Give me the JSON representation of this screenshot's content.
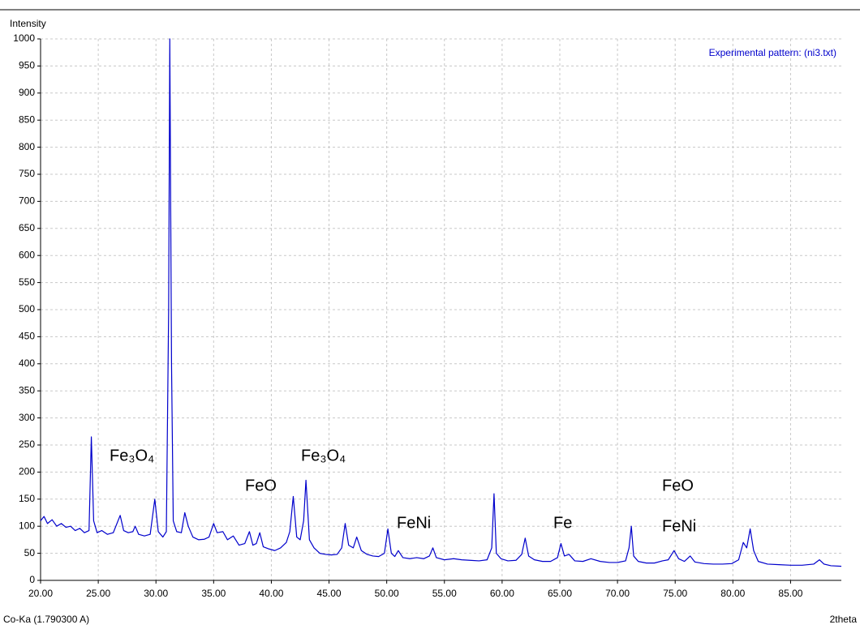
{
  "chart_data": {
    "type": "line",
    "y_label": "Intensity",
    "x_label": "2theta",
    "subtitle": "Co-Ka (1.790300 A)",
    "xlim": [
      20,
      89.4
    ],
    "ylim": [
      0,
      1000
    ],
    "xticks": [
      {
        "value": 20,
        "label": "20.00"
      },
      {
        "value": 25,
        "label": "25.00"
      },
      {
        "value": 30,
        "label": "30.00"
      },
      {
        "value": 35,
        "label": "35.00"
      },
      {
        "value": 40,
        "label": "40.00"
      },
      {
        "value": 45,
        "label": "45.00"
      },
      {
        "value": 50,
        "label": "50.00"
      },
      {
        "value": 55,
        "label": "55.00"
      },
      {
        "value": 60,
        "label": "60.00"
      },
      {
        "value": 65,
        "label": "65.00"
      },
      {
        "value": 70,
        "label": "70.00"
      },
      {
        "value": 75,
        "label": "75.00"
      },
      {
        "value": 80,
        "label": "80.00"
      },
      {
        "value": 85,
        "label": "85.00"
      }
    ],
    "yticks": [
      0,
      50,
      100,
      150,
      200,
      250,
      300,
      350,
      400,
      450,
      500,
      550,
      600,
      650,
      700,
      750,
      800,
      850,
      900,
      950,
      1000
    ],
    "grid": true,
    "legend": "top-right",
    "annotations": [
      "Fe₃O₄",
      "FeO",
      "Fe₃O₄",
      "FeNi",
      "Fe",
      "FeO",
      "FeNi"
    ],
    "x": [
      20.0,
      20.3,
      20.6,
      21.0,
      21.4,
      21.8,
      22.2,
      22.6,
      23.0,
      23.4,
      23.8,
      24.2,
      24.4,
      24.6,
      24.9,
      25.3,
      25.8,
      26.3,
      26.9,
      27.2,
      27.6,
      28.0,
      28.2,
      28.5,
      29.0,
      29.5,
      29.9,
      30.2,
      30.6,
      30.9,
      31.1,
      31.2,
      31.35,
      31.5,
      31.8,
      32.2,
      32.5,
      32.8,
      33.2,
      33.7,
      34.2,
      34.6,
      35.0,
      35.3,
      35.8,
      36.2,
      36.7,
      37.2,
      37.7,
      38.1,
      38.4,
      38.7,
      39.0,
      39.3,
      39.8,
      40.3,
      40.8,
      41.3,
      41.6,
      41.9,
      42.2,
      42.5,
      42.8,
      43.0,
      43.3,
      43.7,
      44.2,
      44.7,
      45.2,
      45.7,
      46.1,
      46.4,
      46.7,
      47.1,
      47.4,
      47.8,
      48.3,
      48.8,
      49.3,
      49.8,
      50.1,
      50.4,
      50.7,
      51.0,
      51.4,
      52.0,
      52.6,
      53.2,
      53.7,
      54.0,
      54.3,
      55.0,
      55.8,
      56.5,
      57.2,
      58.0,
      58.7,
      59.1,
      59.3,
      59.5,
      59.9,
      60.5,
      61.2,
      61.7,
      62.0,
      62.3,
      62.8,
      63.5,
      64.2,
      64.8,
      65.1,
      65.4,
      65.8,
      66.3,
      67.0,
      67.7,
      68.5,
      69.3,
      70.0,
      70.7,
      71.0,
      71.2,
      71.4,
      71.8,
      72.5,
      73.2,
      73.9,
      74.4,
      74.9,
      75.3,
      75.8,
      76.3,
      76.7,
      77.5,
      78.3,
      79.1,
      79.9,
      80.5,
      80.9,
      81.2,
      81.5,
      81.8,
      82.2,
      83.0,
      84.0,
      85.0,
      86.0,
      87.0,
      87.5,
      87.9,
      88.5,
      89.4
    ],
    "series": [
      {
        "name": "Experimental pattern: (ni3.txt)",
        "color": "#0000cc",
        "values": [
          110,
          118,
          105,
          112,
          100,
          105,
          98,
          100,
          92,
          96,
          88,
          92,
          265,
          110,
          88,
          92,
          85,
          88,
          120,
          92,
          88,
          90,
          100,
          85,
          82,
          85,
          150,
          90,
          80,
          90,
          500,
          1000,
          400,
          110,
          90,
          88,
          125,
          100,
          80,
          75,
          76,
          80,
          105,
          88,
          90,
          75,
          82,
          65,
          68,
          90,
          65,
          68,
          88,
          62,
          58,
          55,
          60,
          70,
          90,
          155,
          80,
          75,
          110,
          185,
          75,
          60,
          50,
          48,
          47,
          48,
          60,
          105,
          65,
          60,
          80,
          55,
          48,
          45,
          44,
          50,
          95,
          50,
          44,
          55,
          42,
          40,
          42,
          40,
          45,
          60,
          42,
          38,
          40,
          38,
          37,
          36,
          38,
          60,
          160,
          50,
          40,
          36,
          37,
          48,
          78,
          45,
          38,
          35,
          35,
          42,
          68,
          45,
          48,
          36,
          35,
          40,
          35,
          33,
          33,
          36,
          60,
          100,
          45,
          35,
          32,
          32,
          36,
          38,
          55,
          40,
          35,
          45,
          34,
          31,
          30,
          30,
          31,
          38,
          70,
          60,
          95,
          55,
          35,
          30,
          29,
          28,
          28,
          30,
          38,
          30,
          27,
          26
        ]
      }
    ]
  }
}
